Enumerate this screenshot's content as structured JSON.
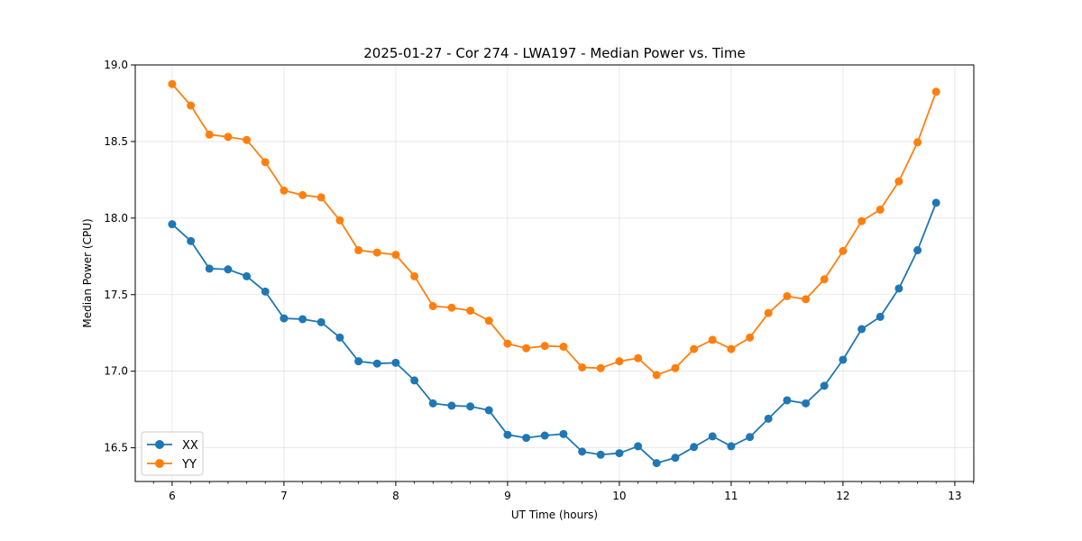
{
  "chart_data": {
    "type": "line",
    "title": "2025-01-27 - Cor 274 - LWA197 - Median Power vs. Time",
    "xlabel": "UT Time (hours)",
    "ylabel": "Median Power (CPU)",
    "xlim": [
      5.67,
      13.17
    ],
    "ylim": [
      16.28,
      19.0
    ],
    "xticks": [
      6,
      7,
      8,
      9,
      10,
      11,
      12,
      13
    ],
    "xtick_labels": [
      "6",
      "7",
      "8",
      "9",
      "10",
      "11",
      "12",
      "13"
    ],
    "yticks": [
      16.5,
      17.0,
      17.5,
      18.0,
      18.5,
      19.0
    ],
    "ytick_labels": [
      "16.5",
      "17.0",
      "17.5",
      "18.0",
      "18.5",
      "19.0"
    ],
    "grid": true,
    "legend_position": "lower-left",
    "x": [
      6.0,
      6.167,
      6.333,
      6.5,
      6.667,
      6.833,
      7.0,
      7.167,
      7.333,
      7.5,
      7.667,
      7.833,
      8.0,
      8.167,
      8.333,
      8.5,
      8.667,
      8.833,
      9.0,
      9.167,
      9.333,
      9.5,
      9.667,
      9.833,
      10.0,
      10.167,
      10.333,
      10.5,
      10.667,
      10.833,
      11.0,
      11.167,
      11.333,
      11.5,
      11.667,
      11.833,
      12.0,
      12.167,
      12.333,
      12.5,
      12.667,
      12.833
    ],
    "series": [
      {
        "name": "XX",
        "color": "#1f77b4",
        "values": [
          17.96,
          17.85,
          17.67,
          17.665,
          17.62,
          17.52,
          17.345,
          17.34,
          17.32,
          17.22,
          17.065,
          17.05,
          17.055,
          16.94,
          16.79,
          16.775,
          16.77,
          16.745,
          16.585,
          16.565,
          16.58,
          16.59,
          16.475,
          16.455,
          16.465,
          16.51,
          16.4,
          16.435,
          16.505,
          16.575,
          16.51,
          16.57,
          16.69,
          16.81,
          16.79,
          16.905,
          17.075,
          17.275,
          17.355,
          17.54,
          17.79,
          18.1
        ]
      },
      {
        "name": "YY",
        "color": "#ff7f0e",
        "values": [
          18.875,
          18.735,
          18.545,
          18.53,
          18.51,
          18.365,
          18.18,
          18.15,
          18.135,
          17.985,
          17.79,
          17.775,
          17.76,
          17.62,
          17.425,
          17.415,
          17.395,
          17.33,
          17.18,
          17.15,
          17.165,
          17.16,
          17.025,
          17.02,
          17.065,
          17.085,
          16.975,
          17.02,
          17.145,
          17.205,
          17.145,
          17.22,
          17.38,
          17.49,
          17.47,
          17.6,
          17.785,
          17.98,
          18.055,
          18.24,
          18.495,
          18.825
        ]
      }
    ]
  }
}
